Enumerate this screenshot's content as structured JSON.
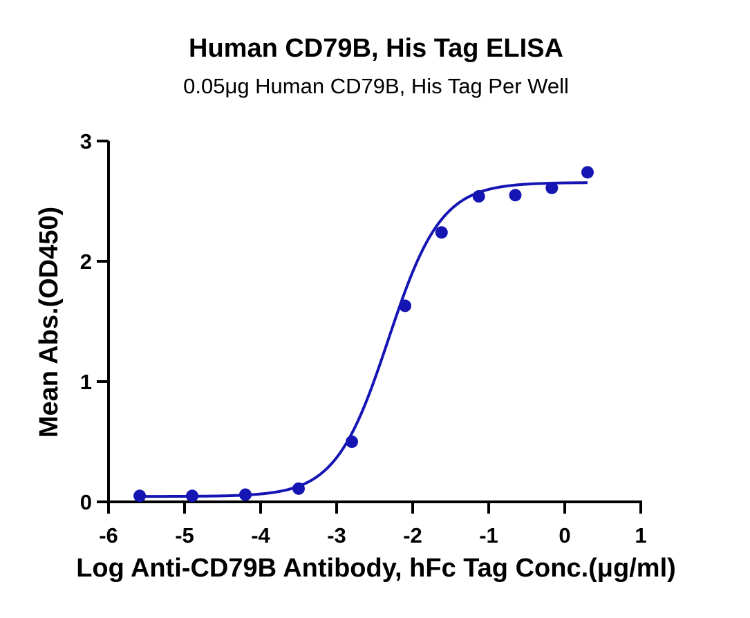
{
  "chart_data": {
    "type": "scatter",
    "title": "Human CD79B, His Tag ELISA",
    "subtitle": "0.05μg Human CD79B, His Tag Per Well",
    "xlabel": "Log Anti-CD79B Antibody, hFc Tag Conc.(μg/ml)",
    "ylabel": "Mean Abs.(OD450)",
    "xlim": [
      -6,
      1
    ],
    "ylim": [
      0,
      3
    ],
    "xticks": [
      -6,
      -5,
      -4,
      -3,
      -2,
      -1,
      0,
      1
    ],
    "yticks": [
      0,
      1,
      2,
      3
    ],
    "xtick_labels": [
      "-6",
      "-5",
      "-4",
      "-3",
      "-2",
      "-1",
      "0",
      "1"
    ],
    "ytick_labels": [
      "0",
      "1",
      "2",
      "3"
    ],
    "grid": false,
    "color": "#1515b4",
    "series": [
      {
        "x": [
          -5.59,
          -4.9,
          -4.2,
          -3.5,
          -2.8,
          -2.1,
          -1.62,
          -1.13,
          -0.65,
          -0.17,
          0.3
        ],
        "y": [
          0.05,
          0.05,
          0.06,
          0.11,
          0.5,
          1.63,
          2.24,
          2.54,
          2.55,
          2.61,
          2.74
        ]
      }
    ],
    "fit_curve": {
      "model": "4PL",
      "bottom": 0.045,
      "top": 2.655,
      "log_ec50": -2.32,
      "hill_slope": 1.25,
      "x_range": [
        -5.59,
        0.3
      ]
    }
  }
}
